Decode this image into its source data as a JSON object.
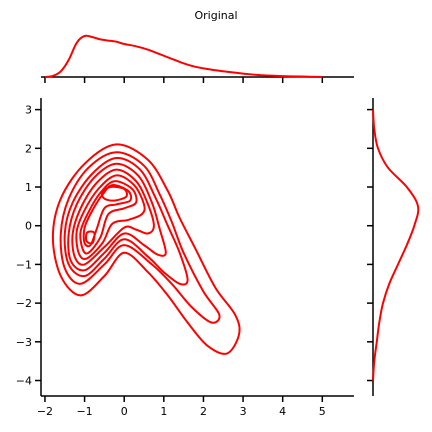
{
  "chart_data": {
    "type": "jointplot-kde",
    "title": "Original",
    "xlabel": "",
    "ylabel": "",
    "xlim": [
      -2.1,
      5.8
    ],
    "ylim": [
      -4.4,
      3.3
    ],
    "x_ticks": [
      -2,
      -1,
      0,
      1,
      2,
      3,
      4,
      5
    ],
    "x_tick_labels": [
      "−2",
      "−1",
      "0",
      "1",
      "2",
      "3",
      "4",
      "5"
    ],
    "y_ticks": [
      -4,
      -3,
      -2,
      -1,
      0,
      1,
      2,
      3
    ],
    "y_tick_labels": [
      "−4",
      "−3",
      "−2",
      "−1",
      "0",
      "1",
      "2",
      "3"
    ],
    "color": "#ff0000",
    "joint_contours": [
      {
        "level": 1,
        "points": [
          [
            -0.2,
            2.1
          ],
          [
            0.6,
            1.7
          ],
          [
            1.1,
            0.9
          ],
          [
            1.4,
            0.2
          ],
          [
            1.8,
            -0.6
          ],
          [
            2.3,
            -1.6
          ],
          [
            2.8,
            -2.3
          ],
          [
            2.9,
            -2.8
          ],
          [
            2.6,
            -3.3
          ],
          [
            2.1,
            -3.1
          ],
          [
            1.6,
            -2.5
          ],
          [
            1.1,
            -1.8
          ],
          [
            0.6,
            -1.2
          ],
          [
            0.0,
            -0.7
          ],
          [
            -0.5,
            -1.3
          ],
          [
            -1.1,
            -1.8
          ],
          [
            -1.6,
            -1.3
          ],
          [
            -1.8,
            -0.3
          ],
          [
            -1.6,
            0.7
          ],
          [
            -1.0,
            1.6
          ]
        ]
      },
      {
        "level": 2,
        "points": [
          [
            -0.2,
            1.9
          ],
          [
            0.5,
            1.55
          ],
          [
            0.9,
            0.8
          ],
          [
            1.2,
            0.1
          ],
          [
            1.5,
            -0.7
          ],
          [
            2.0,
            -1.7
          ],
          [
            2.4,
            -2.3
          ],
          [
            2.2,
            -2.5
          ],
          [
            1.7,
            -2.1
          ],
          [
            1.2,
            -1.5
          ],
          [
            0.7,
            -1.0
          ],
          [
            0.0,
            -0.5
          ],
          [
            -0.5,
            -1.0
          ],
          [
            -1.1,
            -1.5
          ],
          [
            -1.5,
            -1.1
          ],
          [
            -1.6,
            -0.2
          ],
          [
            -1.4,
            0.7
          ],
          [
            -0.9,
            1.5
          ]
        ]
      },
      {
        "level": 3,
        "points": [
          [
            -0.2,
            1.75
          ],
          [
            0.4,
            1.45
          ],
          [
            0.8,
            0.7
          ],
          [
            1.1,
            0.0
          ],
          [
            1.4,
            -0.7
          ],
          [
            1.6,
            -1.4
          ],
          [
            1.4,
            -1.5
          ],
          [
            1.0,
            -1.2
          ],
          [
            0.6,
            -0.8
          ],
          [
            0.0,
            -0.35
          ],
          [
            -0.5,
            -0.85
          ],
          [
            -1.0,
            -1.3
          ],
          [
            -1.4,
            -1.0
          ],
          [
            -1.5,
            -0.2
          ],
          [
            -1.3,
            0.6
          ],
          [
            -0.8,
            1.35
          ]
        ]
      },
      {
        "level": 4,
        "points": [
          [
            -0.2,
            1.6
          ],
          [
            0.35,
            1.3
          ],
          [
            0.7,
            0.6
          ],
          [
            0.9,
            -0.1
          ],
          [
            1.05,
            -0.7
          ],
          [
            0.85,
            -0.75
          ],
          [
            0.5,
            -0.5
          ],
          [
            0.0,
            -0.2
          ],
          [
            -0.5,
            -0.7
          ],
          [
            -1.0,
            -1.15
          ],
          [
            -1.35,
            -0.9
          ],
          [
            -1.4,
            -0.2
          ],
          [
            -1.2,
            0.55
          ],
          [
            -0.75,
            1.25
          ]
        ]
      },
      {
        "level": 5,
        "points": [
          [
            -0.2,
            1.45
          ],
          [
            0.3,
            1.15
          ],
          [
            0.6,
            0.55
          ],
          [
            0.75,
            0.0
          ],
          [
            0.6,
            -0.2
          ],
          [
            0.3,
            -0.1
          ],
          [
            0.0,
            -0.05
          ],
          [
            -0.5,
            -0.55
          ],
          [
            -1.0,
            -1.0
          ],
          [
            -1.25,
            -0.8
          ],
          [
            -1.3,
            -0.2
          ],
          [
            -1.1,
            0.45
          ],
          [
            -0.7,
            1.1
          ]
        ]
      },
      {
        "level": 6,
        "points": [
          [
            -0.2,
            1.3
          ],
          [
            0.25,
            1.05
          ],
          [
            0.5,
            0.55
          ],
          [
            0.45,
            0.3
          ],
          [
            0.1,
            0.15
          ],
          [
            -0.3,
            0.05
          ],
          [
            -0.55,
            -0.45
          ],
          [
            -0.95,
            -0.85
          ],
          [
            -1.15,
            -0.7
          ],
          [
            -1.2,
            -0.15
          ],
          [
            -1.0,
            0.4
          ],
          [
            -0.65,
            0.95
          ]
        ]
      },
      {
        "level": 7,
        "points": [
          [
            -0.25,
            1.15
          ],
          [
            0.2,
            0.95
          ],
          [
            0.3,
            0.6
          ],
          [
            0.0,
            0.45
          ],
          [
            -0.4,
            0.3
          ],
          [
            -0.6,
            -0.3
          ],
          [
            -0.9,
            -0.7
          ],
          [
            -1.05,
            -0.6
          ],
          [
            -1.1,
            -0.15
          ],
          [
            -0.9,
            0.35
          ],
          [
            -0.6,
            0.85
          ]
        ]
      },
      {
        "level": 8,
        "points": [
          [
            -0.3,
            1.05
          ],
          [
            0.1,
            0.9
          ],
          [
            0.15,
            0.65
          ],
          [
            -0.2,
            0.55
          ],
          [
            -0.5,
            0.45
          ],
          [
            -0.7,
            -0.1
          ],
          [
            -0.85,
            -0.5
          ],
          [
            -1.0,
            -0.45
          ],
          [
            -1.0,
            -0.05
          ],
          [
            -0.8,
            0.4
          ],
          [
            -0.55,
            0.8
          ]
        ]
      },
      {
        "level": 9,
        "points": [
          [
            -0.35,
            1.0
          ],
          [
            0.0,
            0.95
          ],
          [
            0.05,
            0.75
          ],
          [
            -0.25,
            0.65
          ],
          [
            -0.5,
            0.7
          ],
          [
            -0.55,
            0.85
          ]
        ]
      },
      {
        "level": 10,
        "points": [
          [
            -0.85,
            -0.15
          ],
          [
            -0.75,
            -0.2
          ],
          [
            -0.8,
            -0.45
          ],
          [
            -0.95,
            -0.4
          ],
          [
            -0.95,
            -0.2
          ]
        ]
      }
    ],
    "marginal_x": {
      "x": [
        -2.0,
        -1.8,
        -1.6,
        -1.4,
        -1.2,
        -1.0,
        -0.8,
        -0.6,
        -0.4,
        -0.2,
        0.0,
        0.3,
        0.6,
        0.9,
        1.2,
        1.5,
        1.8,
        2.1,
        2.5,
        3.0,
        3.5,
        4.0,
        4.5,
        5.0
      ],
      "density": [
        0.0,
        0.01,
        0.05,
        0.15,
        0.3,
        0.36,
        0.35,
        0.33,
        0.32,
        0.31,
        0.29,
        0.27,
        0.24,
        0.2,
        0.16,
        0.12,
        0.09,
        0.07,
        0.05,
        0.03,
        0.015,
        0.008,
        0.004,
        0.0
      ]
    },
    "marginal_y": {
      "y": [
        -4.0,
        -3.5,
        -3.0,
        -2.5,
        -2.0,
        -1.5,
        -1.0,
        -0.5,
        0.0,
        0.5,
        1.0,
        1.5,
        2.0,
        2.5,
        3.0
      ],
      "density": [
        0.0,
        0.01,
        0.03,
        0.05,
        0.08,
        0.13,
        0.2,
        0.27,
        0.33,
        0.36,
        0.27,
        0.12,
        0.04,
        0.01,
        0.0
      ]
    }
  }
}
